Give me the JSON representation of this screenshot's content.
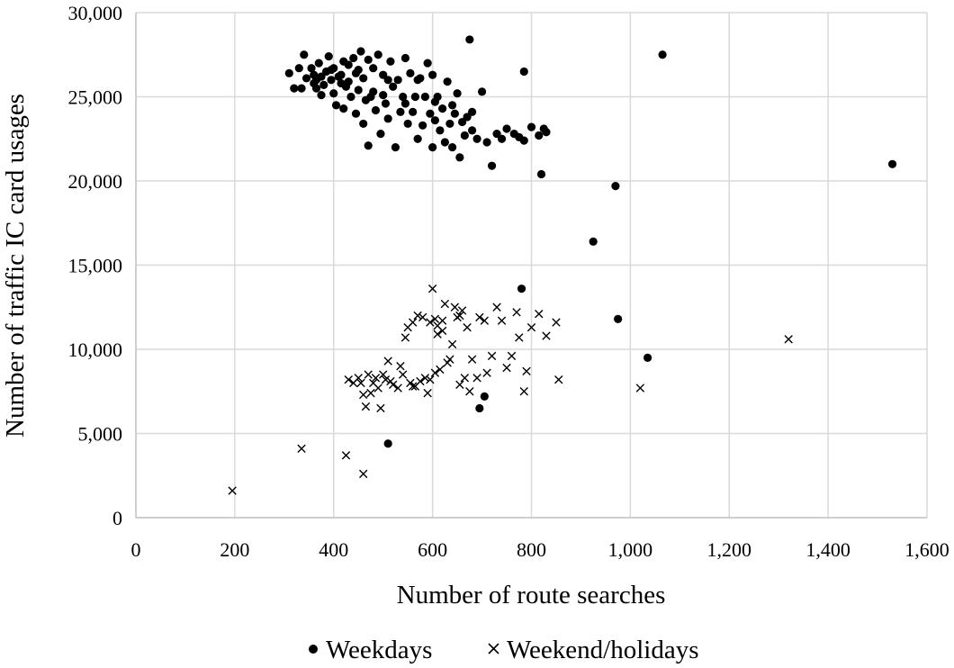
{
  "chart_data": {
    "type": "scatter",
    "title": "",
    "xlabel": "Number of route searches",
    "ylabel": "Number of traffic IC card usages",
    "xlim": [
      0,
      1600
    ],
    "ylim": [
      0,
      30000
    ],
    "xticks": [
      0,
      200,
      400,
      600,
      800,
      1000,
      1200,
      1400,
      1600
    ],
    "yticks": [
      0,
      5000,
      10000,
      15000,
      20000,
      25000,
      30000
    ],
    "xtick_labels": [
      "0",
      "200",
      "400",
      "600",
      "800",
      "1,000",
      "1,200",
      "1,400",
      "1,600"
    ],
    "ytick_labels": [
      "0",
      "5,000",
      "10,000",
      "15,000",
      "20,000",
      "25,000",
      "30,000"
    ],
    "grid": true,
    "legend_position": "bottom",
    "series": [
      {
        "name": "Weekdays",
        "marker": "circle",
        "color": "#000000",
        "points": [
          [
            1530,
            21000
          ],
          [
            1065,
            27500
          ],
          [
            970,
            19700
          ],
          [
            925,
            16400
          ],
          [
            975,
            11800
          ],
          [
            1035,
            9500
          ],
          [
            780,
            13600
          ],
          [
            820,
            20400
          ],
          [
            785,
            26500
          ],
          [
            675,
            28400
          ],
          [
            510,
            4400
          ],
          [
            695,
            6500
          ],
          [
            705,
            7200
          ],
          [
            310,
            26400
          ],
          [
            320,
            25500
          ],
          [
            330,
            26700
          ],
          [
            335,
            25500
          ],
          [
            340,
            27500
          ],
          [
            345,
            26100
          ],
          [
            355,
            26700
          ],
          [
            360,
            25800
          ],
          [
            360,
            26300
          ],
          [
            365,
            25500
          ],
          [
            370,
            27000
          ],
          [
            375,
            26200
          ],
          [
            380,
            25700
          ],
          [
            385,
            26500
          ],
          [
            390,
            27400
          ],
          [
            395,
            26000
          ],
          [
            400,
            25200
          ],
          [
            400,
            26700
          ],
          [
            405,
            24500
          ],
          [
            410,
            26200
          ],
          [
            415,
            25800
          ],
          [
            420,
            24300
          ],
          [
            420,
            27100
          ],
          [
            425,
            25600
          ],
          [
            430,
            26900
          ],
          [
            435,
            25000
          ],
          [
            440,
            27300
          ],
          [
            445,
            24000
          ],
          [
            445,
            26400
          ],
          [
            450,
            25400
          ],
          [
            455,
            27700
          ],
          [
            460,
            23400
          ],
          [
            460,
            26100
          ],
          [
            465,
            24800
          ],
          [
            470,
            22100
          ],
          [
            470,
            27200
          ],
          [
            475,
            25000
          ],
          [
            480,
            26700
          ],
          [
            485,
            24200
          ],
          [
            490,
            27500
          ],
          [
            495,
            22800
          ],
          [
            500,
            25100
          ],
          [
            500,
            26300
          ],
          [
            505,
            24600
          ],
          [
            510,
            23700
          ],
          [
            515,
            27100
          ],
          [
            520,
            25600
          ],
          [
            525,
            22000
          ],
          [
            530,
            26000
          ],
          [
            535,
            24100
          ],
          [
            540,
            25000
          ],
          [
            545,
            27300
          ],
          [
            550,
            23400
          ],
          [
            555,
            26400
          ],
          [
            560,
            24100
          ],
          [
            565,
            25000
          ],
          [
            570,
            22500
          ],
          [
            575,
            26100
          ],
          [
            580,
            23300
          ],
          [
            585,
            25000
          ],
          [
            590,
            27000
          ],
          [
            595,
            24000
          ],
          [
            600,
            22000
          ],
          [
            600,
            26300
          ],
          [
            605,
            23600
          ],
          [
            610,
            25000
          ],
          [
            615,
            23000
          ],
          [
            620,
            24300
          ],
          [
            625,
            22300
          ],
          [
            630,
            25900
          ],
          [
            635,
            23400
          ],
          [
            640,
            22000
          ],
          [
            645,
            24000
          ],
          [
            650,
            25200
          ],
          [
            655,
            21400
          ],
          [
            660,
            23500
          ],
          [
            665,
            22700
          ],
          [
            670,
            23800
          ],
          [
            680,
            23000
          ],
          [
            690,
            22500
          ],
          [
            700,
            25300
          ],
          [
            710,
            22300
          ],
          [
            720,
            20900
          ],
          [
            730,
            22800
          ],
          [
            740,
            22500
          ],
          [
            750,
            23100
          ],
          [
            765,
            22800
          ],
          [
            775,
            22600
          ],
          [
            785,
            22400
          ],
          [
            800,
            23200
          ],
          [
            815,
            22700
          ],
          [
            825,
            23100
          ],
          [
            830,
            22900
          ],
          [
            365,
            26000
          ],
          [
            375,
            25100
          ],
          [
            395,
            26600
          ],
          [
            415,
            26300
          ],
          [
            430,
            25900
          ],
          [
            450,
            26600
          ],
          [
            480,
            25300
          ],
          [
            510,
            26000
          ],
          [
            545,
            24600
          ],
          [
            570,
            26000
          ],
          [
            605,
            24700
          ],
          [
            640,
            24500
          ],
          [
            680,
            24100
          ]
        ]
      },
      {
        "name": "Weekend/holidays",
        "marker": "cross",
        "color": "#000000",
        "points": [
          [
            195,
            1600
          ],
          [
            335,
            4100
          ],
          [
            425,
            3700
          ],
          [
            460,
            2600
          ],
          [
            1320,
            10600
          ],
          [
            1020,
            7700
          ],
          [
            855,
            8200
          ],
          [
            850,
            11600
          ],
          [
            830,
            10800
          ],
          [
            815,
            12100
          ],
          [
            800,
            11300
          ],
          [
            790,
            8700
          ],
          [
            785,
            7500
          ],
          [
            775,
            10700
          ],
          [
            770,
            12200
          ],
          [
            760,
            9600
          ],
          [
            750,
            8900
          ],
          [
            740,
            11700
          ],
          [
            730,
            12500
          ],
          [
            720,
            9600
          ],
          [
            710,
            8600
          ],
          [
            705,
            11700
          ],
          [
            695,
            11900
          ],
          [
            690,
            8300
          ],
          [
            680,
            9400
          ],
          [
            675,
            7500
          ],
          [
            670,
            11300
          ],
          [
            665,
            8300
          ],
          [
            660,
            12300
          ],
          [
            655,
            7900
          ],
          [
            650,
            11900
          ],
          [
            645,
            12500
          ],
          [
            640,
            10300
          ],
          [
            635,
            9400
          ],
          [
            630,
            9200
          ],
          [
            625,
            12700
          ],
          [
            620,
            11700
          ],
          [
            615,
            8800
          ],
          [
            610,
            11400
          ],
          [
            605,
            8600
          ],
          [
            600,
            13600
          ],
          [
            595,
            11600
          ],
          [
            590,
            7400
          ],
          [
            585,
            8300
          ],
          [
            580,
            11900
          ],
          [
            575,
            8100
          ],
          [
            570,
            12000
          ],
          [
            565,
            7800
          ],
          [
            560,
            11600
          ],
          [
            555,
            8000
          ],
          [
            550,
            11300
          ],
          [
            545,
            10700
          ],
          [
            540,
            8500
          ],
          [
            535,
            9000
          ],
          [
            530,
            7700
          ],
          [
            520,
            7900
          ],
          [
            515,
            8100
          ],
          [
            510,
            9300
          ],
          [
            505,
            8200
          ],
          [
            500,
            8500
          ],
          [
            495,
            6500
          ],
          [
            490,
            7700
          ],
          [
            485,
            8300
          ],
          [
            480,
            8000
          ],
          [
            475,
            7400
          ],
          [
            470,
            8500
          ],
          [
            465,
            6600
          ],
          [
            460,
            7300
          ],
          [
            455,
            8000
          ],
          [
            450,
            8300
          ],
          [
            440,
            8000
          ],
          [
            430,
            8200
          ],
          [
            620,
            11100
          ],
          [
            610,
            10900
          ],
          [
            605,
            11800
          ],
          [
            655,
            12000
          ],
          [
            595,
            8200
          ],
          [
            560,
            7800
          ]
        ]
      }
    ]
  }
}
